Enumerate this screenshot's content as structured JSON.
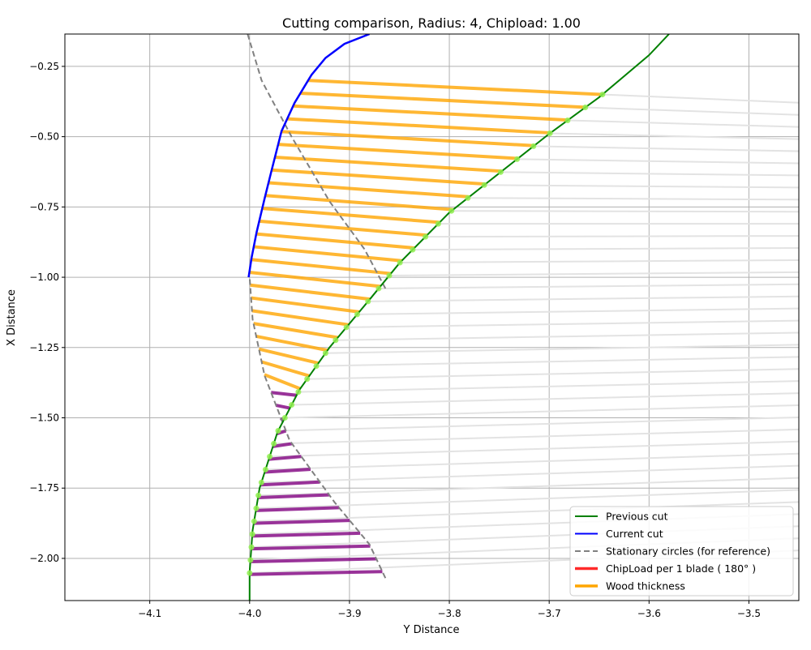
{
  "chart_data": {
    "type": "line",
    "title": "Cutting comparison, Radius: 4, Chipload: 1.00",
    "xlabel": "Y Distance",
    "ylabel": "X Distance",
    "xlim": [
      -4.185,
      -3.45
    ],
    "ylim": [
      -2.15,
      -0.135
    ],
    "x_ticks": [
      -4.1,
      -4.0,
      -3.9,
      -3.8,
      -3.7,
      -3.6,
      -3.5
    ],
    "x_tick_labels": [
      "−4.1",
      "−4.0",
      "−3.9",
      "−3.8",
      "−3.7",
      "−3.6",
      "−3.5"
    ],
    "y_ticks": [
      -0.25,
      -0.5,
      -0.75,
      -1.0,
      -1.25,
      -1.5,
      -1.75,
      -2.0
    ],
    "y_tick_labels": [
      "−0.25",
      "−0.50",
      "−0.75",
      "−1.00",
      "−1.25",
      "−1.50",
      "−1.75",
      "−2.00"
    ],
    "grid": true,
    "legend_position": "lower-right",
    "colors": {
      "previous": "#008000",
      "current": "#0000ff",
      "stationary": "#808080",
      "chipload": "#ff2a2a",
      "wood": "#ffa500",
      "chip_segment": "#800080",
      "marker": "#90ee50",
      "radial": "#e3e3e3"
    },
    "series": [
      {
        "name": "Previous cut",
        "points": [
          [
            -4.0,
            -2.15
          ],
          [
            -4.0,
            -2.05
          ],
          [
            -3.997,
            -1.9
          ],
          [
            -3.99,
            -1.75
          ],
          [
            -3.972,
            -1.55
          ],
          [
            -3.95,
            -1.4
          ],
          [
            -3.92,
            -1.25
          ],
          [
            -3.88,
            -1.08
          ],
          [
            -3.85,
            -0.95
          ],
          [
            -3.8,
            -0.77
          ],
          [
            -3.75,
            -0.63
          ],
          [
            -3.7,
            -0.49
          ],
          [
            -3.65,
            -0.36
          ],
          [
            -3.6,
            -0.21
          ],
          [
            -3.58,
            -0.135
          ]
        ]
      },
      {
        "name": "Current cut",
        "points": [
          [
            -4.001,
            -1.0
          ],
          [
            -3.998,
            -0.93
          ],
          [
            -3.993,
            -0.84
          ],
          [
            -3.985,
            -0.72
          ],
          [
            -3.978,
            -0.62
          ],
          [
            -3.968,
            -0.48
          ],
          [
            -3.955,
            -0.38
          ],
          [
            -3.938,
            -0.28
          ],
          [
            -3.924,
            -0.22
          ],
          [
            -3.905,
            -0.17
          ],
          [
            -3.88,
            -0.135
          ]
        ]
      },
      {
        "name": "Stationary circles (for reference)",
        "points": [
          [
            -4.002,
            -0.135
          ],
          [
            -3.988,
            -0.3
          ],
          [
            -3.958,
            -0.5
          ],
          [
            -3.92,
            -0.73
          ],
          [
            -3.885,
            -0.9
          ],
          [
            -3.864,
            -1.04
          ]
        ],
        "points_lower": [
          [
            -3.864,
            -2.07
          ],
          [
            -3.88,
            -1.95
          ],
          [
            -3.915,
            -1.8
          ],
          [
            -3.96,
            -1.58
          ],
          [
            -3.985,
            -1.35
          ],
          [
            -3.997,
            -1.15
          ],
          [
            -4.0,
            -1.0
          ]
        ]
      }
    ],
    "legend": [
      {
        "label": "Previous cut",
        "style": "line",
        "color": "#008000"
      },
      {
        "label": "Current cut",
        "style": "line",
        "color": "#0000ff"
      },
      {
        "label": "Stationary circles (for reference)",
        "style": "dashed",
        "color": "#808080"
      },
      {
        "label": "ChipLoad per 1 blade ( 180° )",
        "style": "thick",
        "color": "#ff2a2a"
      },
      {
        "label": "Wood thickness",
        "style": "thick",
        "color": "#ffa500"
      }
    ],
    "wood_thickness_rows": {
      "x_start": -0.3,
      "x_step": -0.0455,
      "count": 24
    },
    "chipload_rows": {
      "x_start": -1.42,
      "x_step": -0.0455,
      "count": 15
    }
  }
}
